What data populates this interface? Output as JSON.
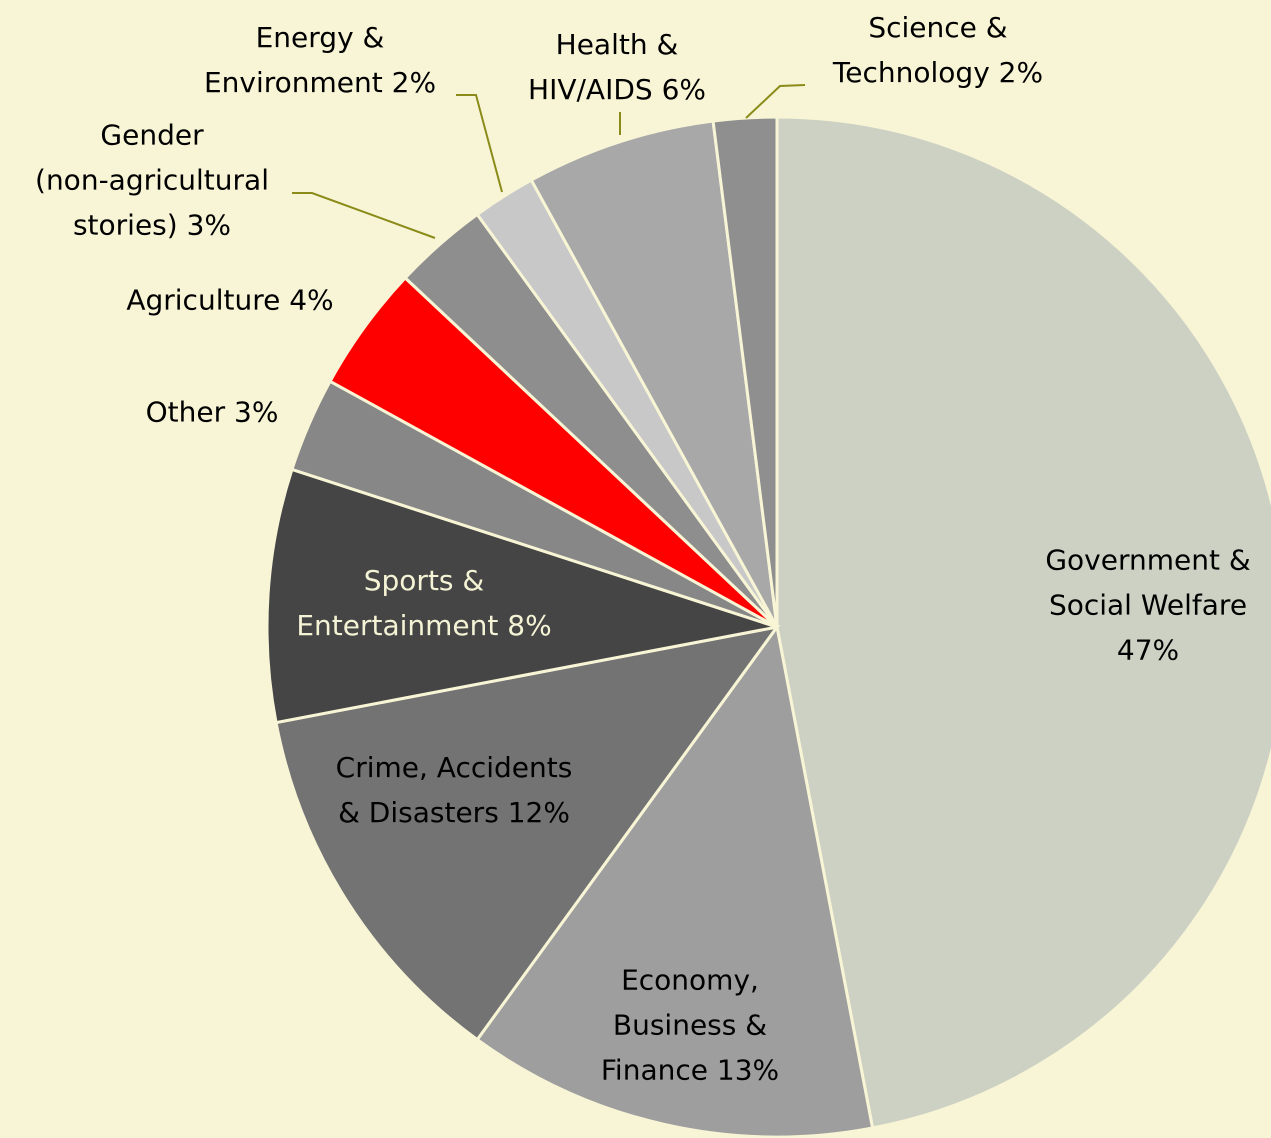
{
  "chart_data": {
    "type": "pie",
    "categories": [
      "Government &\nSocial Welfare",
      "Economy,\nBusiness &\nFinance",
      "Crime, Accidents\n& Disasters",
      "Sports &\nEntertainment",
      "Other",
      "Agriculture",
      "Gender\n(non-agricultural\nstories)",
      "Energy &\nEnvironment",
      "Health &\nHIV/AIDS",
      "Science &\nTechnology"
    ],
    "values": [
      47,
      13,
      12,
      8,
      3,
      4,
      3,
      2,
      6,
      2
    ],
    "value_labels": [
      "47%",
      "13%",
      "12%",
      "8%",
      "3%",
      "4%",
      "3%",
      "2%",
      "6%",
      "2%"
    ],
    "colors": [
      "#cdd1c3",
      "#9e9e9e",
      "#737373",
      "#454545",
      "#878787",
      "#ff0000",
      "#8e8e8e",
      "#c8c8c8",
      "#a8a8a8",
      "#8f8f8f"
    ]
  }
}
